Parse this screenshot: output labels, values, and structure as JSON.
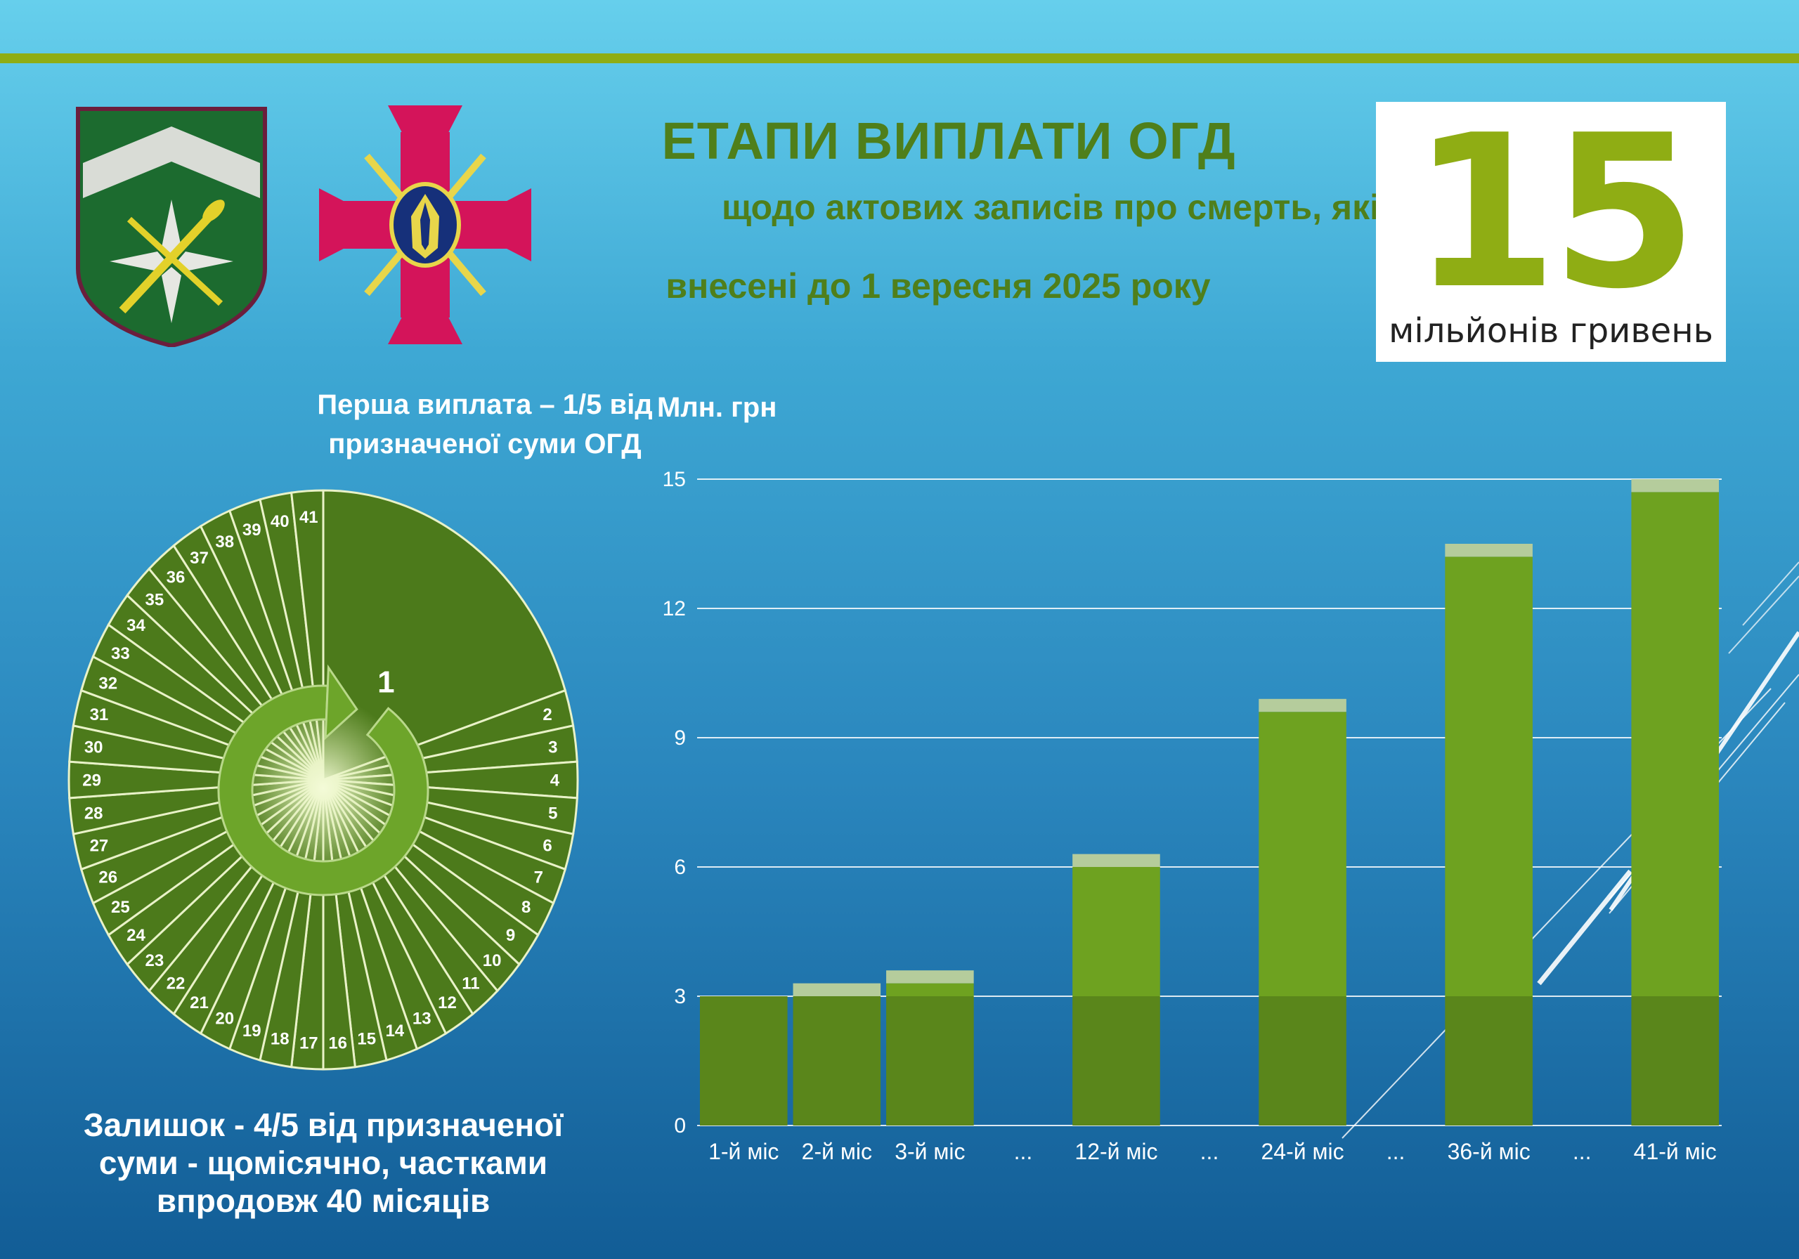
{
  "header": {
    "title": "ЕТАПИ ВИПЛАТИ ОГД",
    "subtitle_line1": "щодо актових записів про смерть, які",
    "subtitle_line2": "внесені до 1 вересня 2025  року"
  },
  "badge": {
    "number": "15",
    "unit": "мільйонів гривень"
  },
  "pie": {
    "caption_top": "Перша виплата – 1/5 від призначеної суми ОГД",
    "caption_bottom": "Залишок - 4/5 від призначеної суми - щомісячно, частками впродовж 40 місяців",
    "first_share": 0.2,
    "remaining_months": 40,
    "first_label": "1"
  },
  "colors": {
    "accent": "#8fad14",
    "title": "#4f7f1b",
    "pie_fill": "#4c7a1b",
    "bar_base": "#5a861b",
    "bar_top": "#6ea220",
    "bar_cap": "#b5cc9c"
  },
  "chart_data": {
    "type": "bar",
    "ylabel": "Млн. грн",
    "ylim": [
      0,
      15
    ],
    "yticks": [
      0,
      3,
      6,
      9,
      12,
      15
    ],
    "grid": true,
    "categories": [
      "1-й міс",
      "2-й міс",
      "3-й міс",
      "...",
      "12-й міс",
      "...",
      "24-й міс",
      "...",
      "36-й міс",
      "...",
      "41-й міс"
    ],
    "series": [
      {
        "values": [
          3,
          3,
          3,
          null,
          3,
          null,
          3,
          null,
          3,
          null,
          3
        ]
      },
      {
        "values": [
          0,
          0,
          0.3,
          null,
          3,
          null,
          6.6,
          null,
          10.2,
          null,
          11.7
        ]
      },
      {
        "values": [
          0,
          0.3,
          0.3,
          null,
          0.3,
          null,
          0.3,
          null,
          0.3,
          null,
          0.3
        ]
      }
    ]
  }
}
